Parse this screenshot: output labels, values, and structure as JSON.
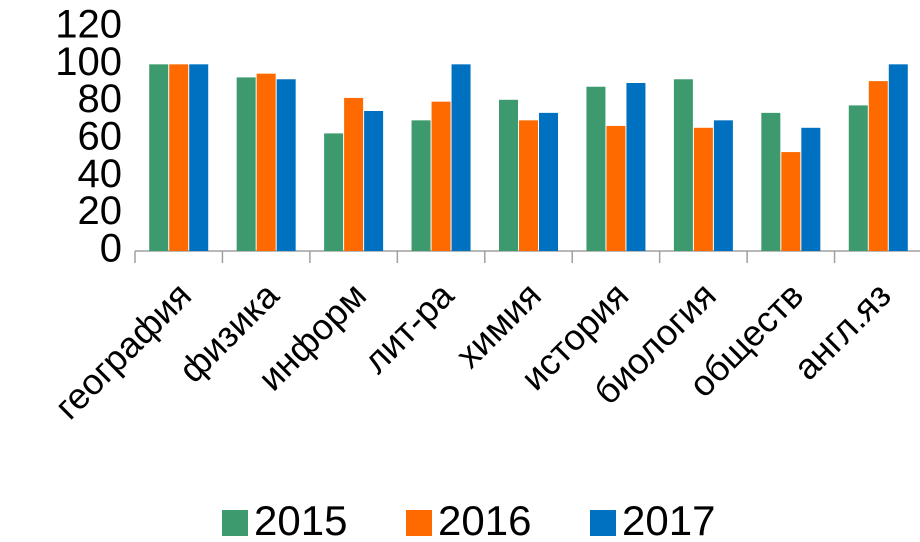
{
  "chart_data": {
    "type": "bar",
    "categories": [
      "география",
      "физика",
      "информ",
      "лит-ра",
      "химия",
      "история",
      "биология",
      "обществ",
      "англ.яз"
    ],
    "series": [
      {
        "name": "2015",
        "color": "#3c9a6e",
        "values": [
          100,
          93,
          63,
          70,
          81,
          88,
          92,
          74,
          78
        ]
      },
      {
        "name": "2016",
        "color": "#ff6a00",
        "values": [
          100,
          95,
          82,
          80,
          70,
          67,
          66,
          53,
          91
        ]
      },
      {
        "name": "2017",
        "color": "#0070c0",
        "values": [
          100,
          92,
          75,
          100,
          74,
          90,
          70,
          66,
          100
        ]
      }
    ],
    "ylim": [
      0,
      120
    ],
    "yticks": [
      0,
      20,
      40,
      60,
      80,
      100,
      120
    ],
    "grid": false,
    "legend": "bottom"
  }
}
